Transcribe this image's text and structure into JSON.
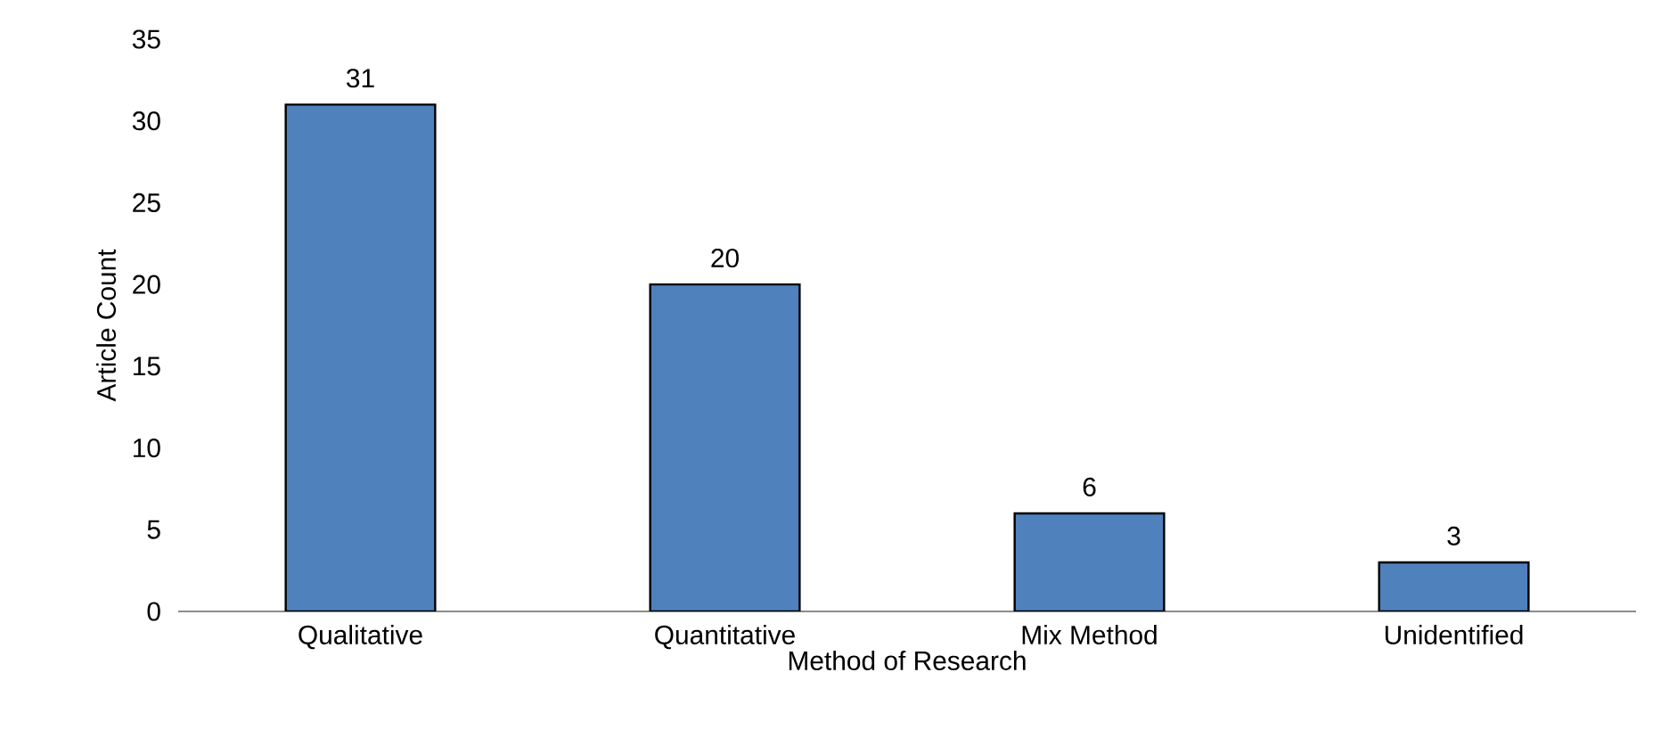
{
  "chart_data": {
    "type": "bar",
    "xlabel": "Method of Research",
    "ylabel": "Article Count",
    "categories": [
      "Qualitative",
      "Quantitative",
      "Mix Method",
      "Unidentified"
    ],
    "values": [
      31,
      20,
      6,
      3
    ],
    "color": "#4f81bd",
    "ylim": [
      0,
      35
    ],
    "yticks": [
      0,
      5,
      10,
      15,
      20,
      25,
      30,
      35
    ],
    "data_labels": true
  }
}
